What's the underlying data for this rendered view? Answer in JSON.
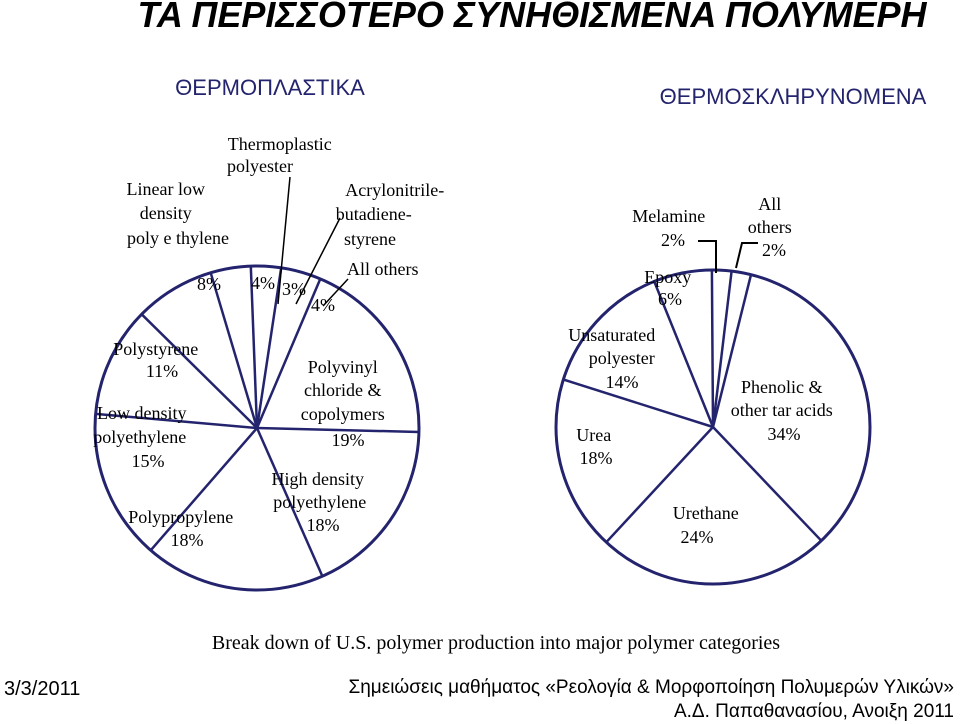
{
  "slide": {
    "title": "ΤΑ ΠΕΡΙΣΣΟΤΕΡΟ ΣΥΝΗΘΙΣΜΕΝΑ ΠΟΛΥΜΕΡΗ",
    "caption": "Break down of U.S. polymer production into major polymer categories",
    "footer_date": "3/3/2011",
    "footer_course_line1": "Σημειώσεις μαθήματος «Ρεολογία & Μορφοποίηση Πολυμερών Υλικών»",
    "footer_course_line2": "Α.Δ. Παπαθανασίου, Ανοιξη 2011"
  },
  "colors": {
    "outline": "#24246e",
    "text": "#000000",
    "background": "#ffffff"
  },
  "chart_data": [
    {
      "type": "pie",
      "title": "ΘΕΡΜΟΠΛΑΣΤΙΚΑ",
      "unit": "%",
      "slices": [
        {
          "label": "Polyvinyl chloride & copolymers",
          "value": 19
        },
        {
          "label": "High density polyethylene",
          "value": 18
        },
        {
          "label": "Polypropylene",
          "value": 18
        },
        {
          "label": "Low density polyethylene",
          "value": 15
        },
        {
          "label": "Polystyrene",
          "value": 11
        },
        {
          "label": "Linear low density polyethylene",
          "value": 8
        },
        {
          "label": "Thermoplastic polyester",
          "value": 4
        },
        {
          "label": "Acrylonitrile-butadiene-styrene",
          "value": 3
        },
        {
          "label": "All others",
          "value": 4
        }
      ]
    },
    {
      "type": "pie",
      "title": "ΘΕΡΜΟΣΚΛΗΡΥΝΟΜΕΝΑ",
      "unit": "%",
      "slices": [
        {
          "label": "Phenolic & other tar acids",
          "value": 34
        },
        {
          "label": "Urethane",
          "value": 24
        },
        {
          "label": "Urea",
          "value": 18
        },
        {
          "label": "Unsaturated polyester",
          "value": 14
        },
        {
          "label": "Epoxy",
          "value": 6
        },
        {
          "label": "Melamine",
          "value": 2
        },
        {
          "label": "All others",
          "value": 2
        }
      ]
    }
  ]
}
